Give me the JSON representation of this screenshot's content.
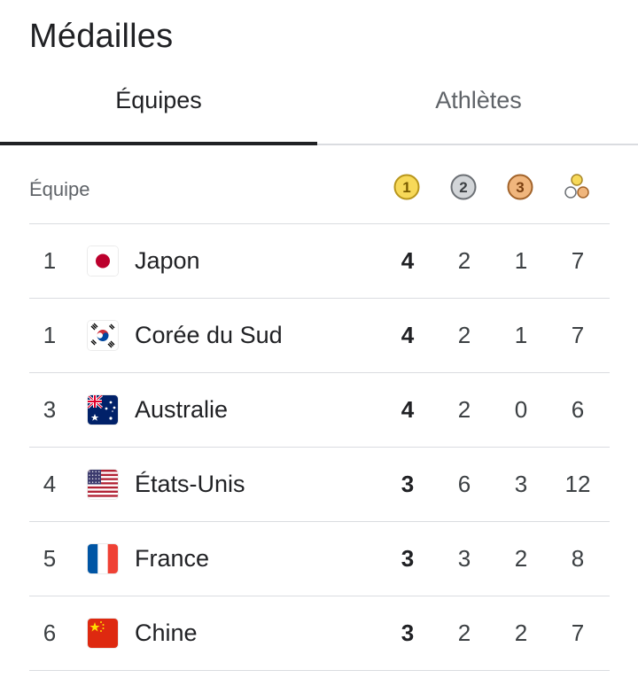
{
  "header": {
    "title": "Médailles"
  },
  "tabs": [
    {
      "label": "Équipes",
      "selected": true
    },
    {
      "label": "Athlètes",
      "selected": false
    }
  ],
  "table": {
    "team_header": "Équipe",
    "medal_columns": {
      "gold_number": "1",
      "silver_number": "2",
      "bronze_number": "3"
    },
    "colors": {
      "gold_fill": "#f7d959",
      "gold_stroke": "#b8961c",
      "silver_fill": "#d2d5d8",
      "silver_stroke": "#6b6f74",
      "bronze_fill": "#f0b67d",
      "bronze_stroke": "#a2632a"
    },
    "rows": [
      {
        "rank": "1",
        "country": "Japon",
        "flag": "japan-flag-icon",
        "gold": "4",
        "silver": "2",
        "bronze": "1",
        "total": "7"
      },
      {
        "rank": "1",
        "country": "Corée du Sud",
        "flag": "south-korea-flag-icon",
        "gold": "4",
        "silver": "2",
        "bronze": "1",
        "total": "7"
      },
      {
        "rank": "3",
        "country": "Australie",
        "flag": "australia-flag-icon",
        "gold": "4",
        "silver": "2",
        "bronze": "0",
        "total": "6"
      },
      {
        "rank": "4",
        "country": "États-Unis",
        "flag": "usa-flag-icon",
        "gold": "3",
        "silver": "6",
        "bronze": "3",
        "total": "12"
      },
      {
        "rank": "5",
        "country": "France",
        "flag": "france-flag-icon",
        "gold": "3",
        "silver": "3",
        "bronze": "2",
        "total": "8"
      },
      {
        "rank": "6",
        "country": "Chine",
        "flag": "china-flag-icon",
        "gold": "3",
        "silver": "2",
        "bronze": "2",
        "total": "7"
      }
    ]
  }
}
